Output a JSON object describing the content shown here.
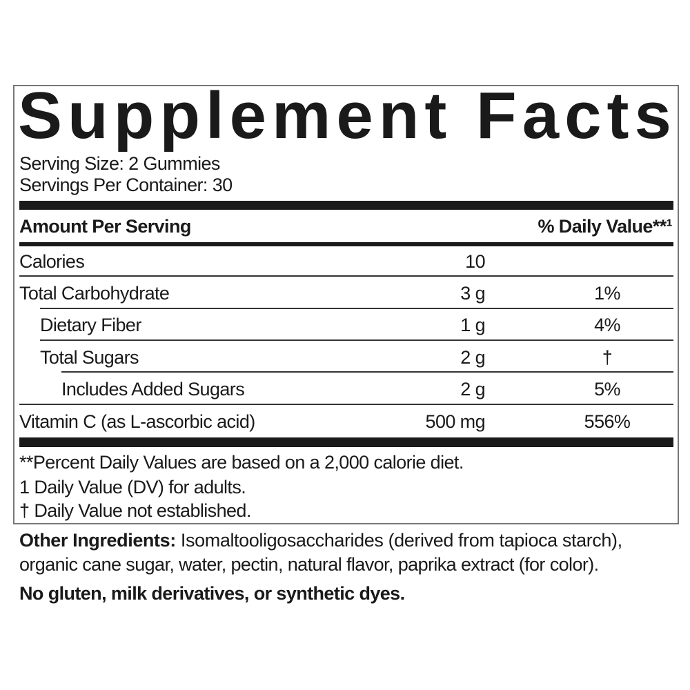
{
  "title": "Supplement Facts",
  "serving_size": "Serving Size: 2 Gummies",
  "servings_per_container": "Servings Per Container: 30",
  "header": {
    "amount_per_serving": "Amount Per Serving",
    "daily_value": "% Daily Value**¹"
  },
  "rows": [
    {
      "name": "Calories",
      "amount": "10",
      "dv": ""
    },
    {
      "name": "Total Carbohydrate",
      "amount": "3 g",
      "dv": "1%"
    },
    {
      "name": "Dietary Fiber",
      "amount": "1 g",
      "dv": "4%"
    },
    {
      "name": "Total Sugars",
      "amount": "2 g",
      "dv": "†"
    },
    {
      "name": "Includes Added Sugars",
      "amount": "2 g",
      "dv": "5%"
    },
    {
      "name": "Vitamin C (as L-ascorbic acid)",
      "amount": "500 mg",
      "dv": "556%"
    }
  ],
  "footnotes": [
    "**Percent Daily Values are based on a 2,000 calorie diet.",
    "1 Daily Value (DV) for adults.",
    "† Daily Value not established."
  ],
  "other_ingredients": {
    "label": "Other Ingredients:",
    "line1": " Isomaltooligosaccharides (derived from tapioca starch),",
    "line2": "organic cane sugar, water, pectin, natural flavor, paprika extract (for color)."
  },
  "free_from": "No gluten, milk derivatives, or synthetic dyes."
}
